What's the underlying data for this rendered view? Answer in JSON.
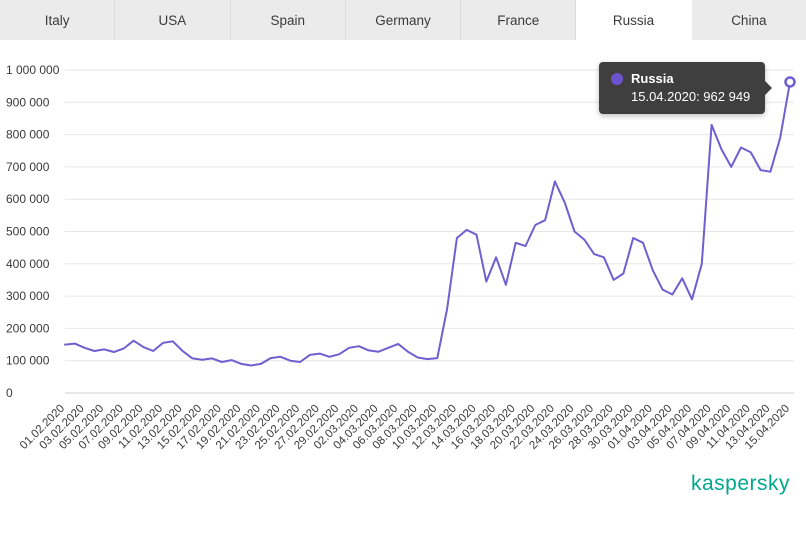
{
  "tabs": [
    {
      "label": "Italy",
      "active": false
    },
    {
      "label": "USA",
      "active": false
    },
    {
      "label": "Spain",
      "active": false
    },
    {
      "label": "Germany",
      "active": false
    },
    {
      "label": "France",
      "active": false
    },
    {
      "label": "Russia",
      "active": true
    },
    {
      "label": "China",
      "active": false
    }
  ],
  "tooltip": {
    "country": "Russia",
    "text": "15.04.2020: 962 949",
    "dot_color": "#6a54cf"
  },
  "branding": {
    "logo_text": "kaspersky",
    "logo_color": "#00A88E"
  },
  "chart_data": {
    "type": "line",
    "title": "",
    "series_name": "Russia",
    "line_color": "#6f5fd0",
    "grid": true,
    "legend": "none",
    "ylim": [
      0,
      1000000
    ],
    "ytick_labels": [
      "0",
      "100 000",
      "200 000",
      "300 000",
      "400 000",
      "500 000",
      "600 000",
      "700 000",
      "800 000",
      "900 000",
      "1 000 000"
    ],
    "x_label_step": 2,
    "x_labels": [
      "01.02.2020",
      "03.02.2020",
      "05.02.2020",
      "07.02.2020",
      "09.02.2020",
      "11.02.2020",
      "13.02.2020",
      "15.02.2020",
      "17.02.2020",
      "19.02.2020",
      "21.02.2020",
      "23.02.2020",
      "25.02.2020",
      "27.02.2020",
      "29.02.2020",
      "02.03.2020",
      "04.03.2020",
      "06.03.2020",
      "08.03.2020",
      "10.03.2020",
      "12.03.2020",
      "14.03.2020",
      "16.03.2020",
      "18.03.2020",
      "20.03.2020",
      "22.03.2020",
      "24.03.2020",
      "26.03.2020",
      "28.03.2020",
      "30.03.2020",
      "01.04.2020",
      "03.04.2020",
      "05.04.2020",
      "07.04.2020",
      "09.04.2020",
      "11.04.2020",
      "13.04.2020",
      "15.04.2020"
    ],
    "values": [
      150000,
      153000,
      140000,
      130000,
      135000,
      127000,
      138000,
      162000,
      142000,
      130000,
      155000,
      160000,
      130000,
      107000,
      103000,
      107000,
      96000,
      102000,
      90000,
      85000,
      90000,
      108000,
      112000,
      100000,
      96000,
      118000,
      122000,
      112000,
      120000,
      140000,
      145000,
      132000,
      128000,
      140000,
      152000,
      128000,
      110000,
      105000,
      108000,
      260000,
      480000,
      505000,
      490000,
      345000,
      420000,
      335000,
      465000,
      455000,
      520000,
      535000,
      655000,
      590000,
      500000,
      475000,
      430000,
      420000,
      350000,
      370000,
      480000,
      465000,
      380000,
      320000,
      305000,
      355000,
      290000,
      400000,
      830000,
      755000,
      700000,
      760000,
      745000,
      690000,
      685000,
      790000,
      962949
    ],
    "last_point": {
      "date": "15.04.2020",
      "value": 962949
    }
  }
}
